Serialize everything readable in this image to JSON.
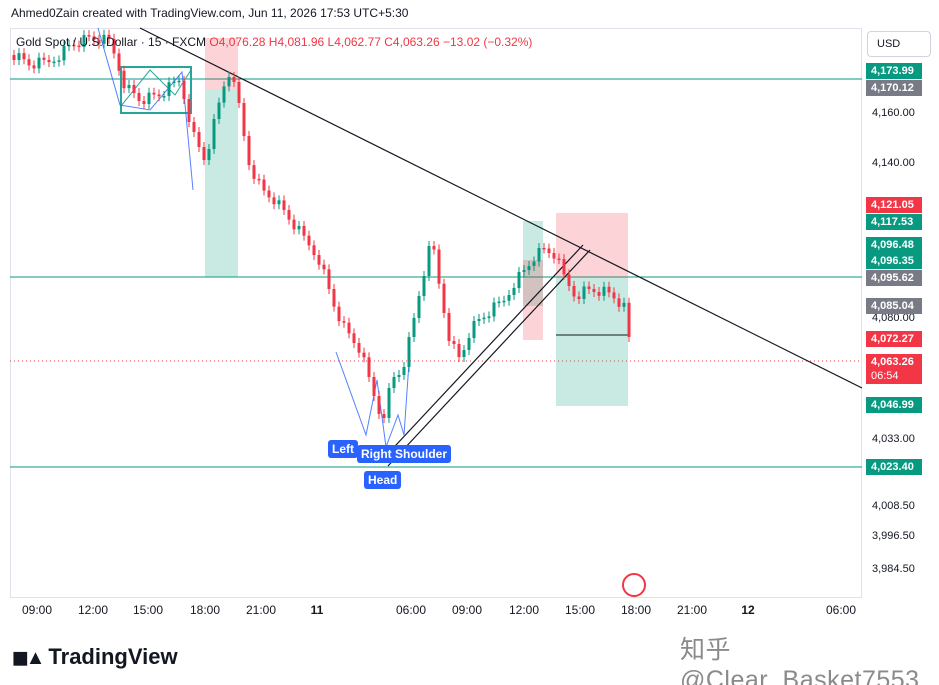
{
  "caption": "Ahmed0Zain created with TradingView.com, Jun 11, 2026 17:53 UTC+5:30",
  "legend": {
    "symbol": "Gold Spot / U.S. Dollar · 15 · FXCM",
    "open": "O4,076.28",
    "high": "H4,081.96",
    "low": "L4,062.77",
    "close": "C4,063.26",
    "change": "−13.02 (−0.32%)"
  },
  "currency_button": "USD",
  "price_ticks": [
    "4,160.00",
    "4,140.00",
    "4,080.00",
    "4,033.00",
    "4,008.50",
    "3,996.50",
    "3,984.50"
  ],
  "price_labels": [
    {
      "text": "4,173.99",
      "color": "#089981"
    },
    {
      "text": "4,170.12",
      "color": "#787b86"
    },
    {
      "text": "4,121.05",
      "color": "#f23645"
    },
    {
      "text": "4,117.53",
      "color": "#089981"
    },
    {
      "text": "4,096.48",
      "color": "#089981"
    },
    {
      "text": "4,096.35",
      "color": "#089981"
    },
    {
      "text": "4,095.62",
      "color": "#787b86"
    },
    {
      "text": "4,085.04",
      "color": "#787b86"
    },
    {
      "text": "4,072.27",
      "color": "#f23645"
    },
    {
      "text": "4,063.26",
      "color": "#f23645"
    },
    {
      "text": "06:54",
      "color": "#f23645"
    },
    {
      "text": "4,046.99",
      "color": "#089981"
    },
    {
      "text": "4,023.40",
      "color": "#089981"
    }
  ],
  "time_ticks": [
    "09:00",
    "12:00",
    "15:00",
    "18:00",
    "21:00",
    "11",
    "06:00",
    "09:00",
    "12:00",
    "15:00",
    "18:00",
    "21:00",
    "12",
    "06:00"
  ],
  "pattern_labels": {
    "left": "Left",
    "right": "Right Shoulder",
    "head": "Head"
  },
  "footer_brand": "TradingView",
  "watermark": "知乎 @Clear_Basket7553",
  "colors": {
    "up": "#089981",
    "down": "#f23645",
    "accent": "#2962ff",
    "hline": "#089981"
  }
}
